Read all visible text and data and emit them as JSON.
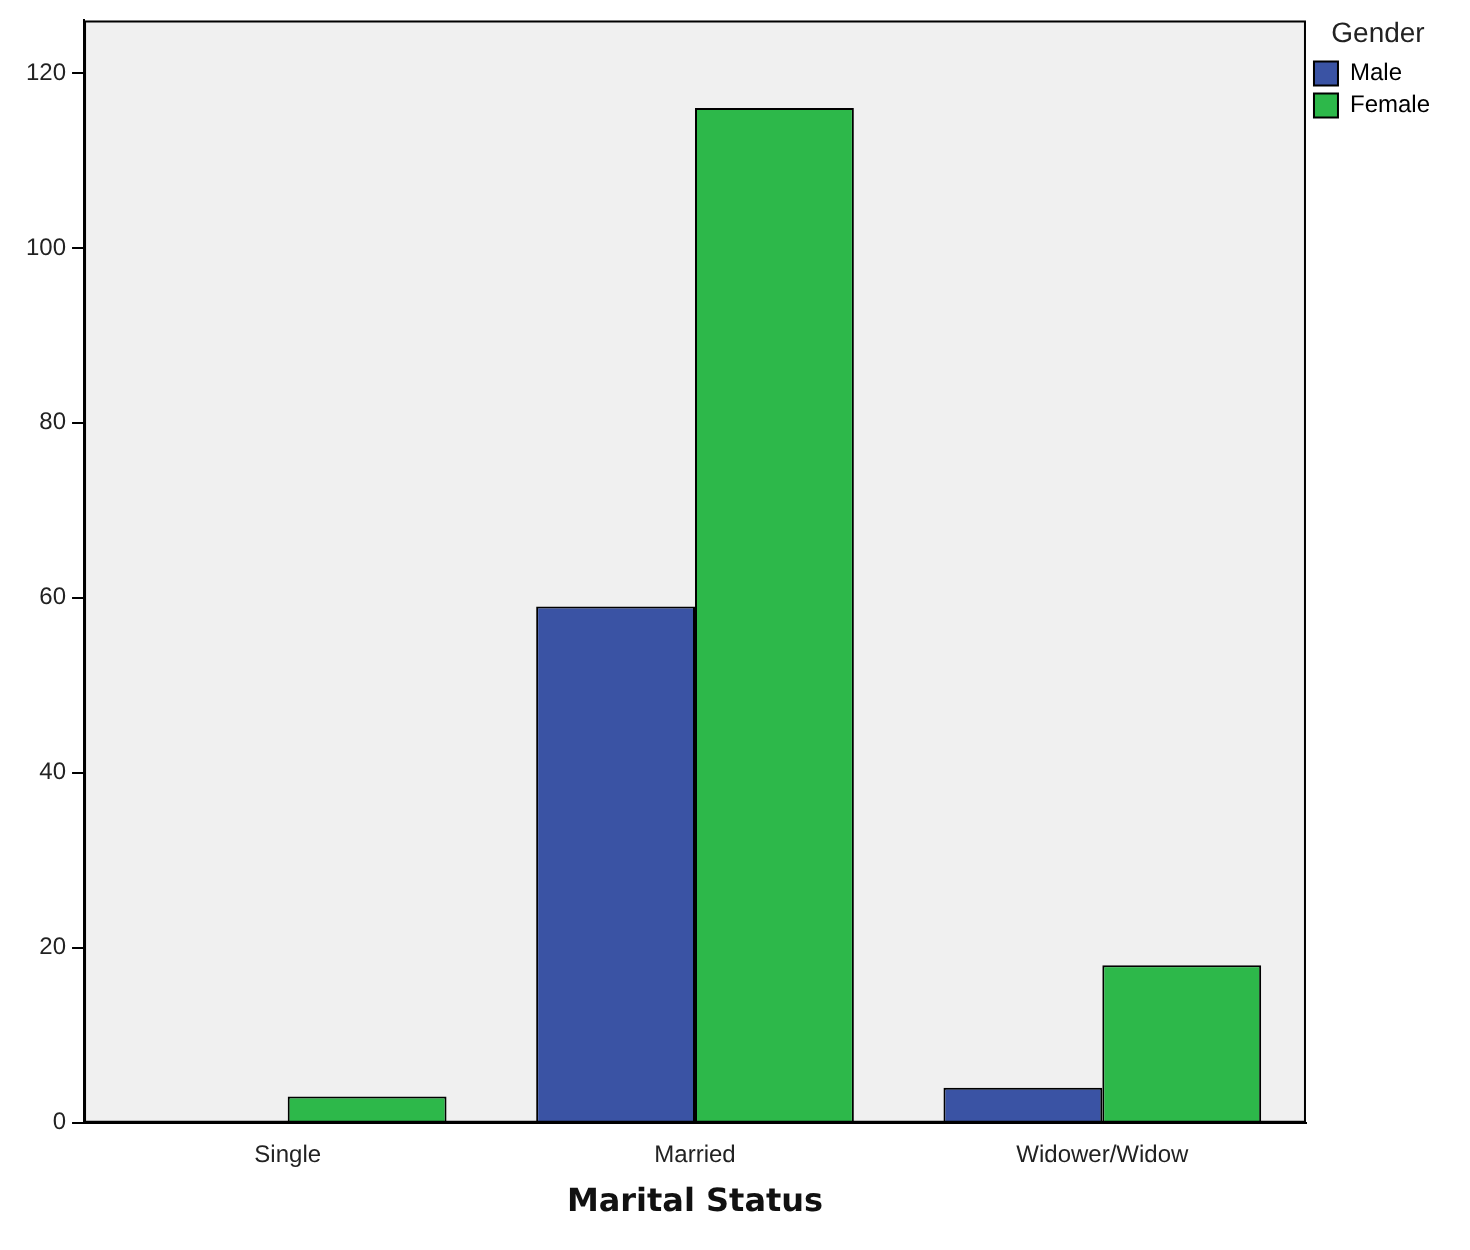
{
  "chart_data": {
    "type": "bar",
    "xlabel": "Marital Status",
    "legend_title": "Gender",
    "categories": [
      "Single",
      "Married",
      "Widower/Widow"
    ],
    "series": [
      {
        "name": "Male",
        "color": "#3a53a4",
        "values": [
          0,
          59,
          4
        ]
      },
      {
        "name": "Female",
        "color": "#2db84a",
        "values": [
          3,
          116,
          18
        ]
      }
    ],
    "ylim": [
      0,
      126
    ],
    "yticks": [
      0,
      20,
      40,
      60,
      80,
      100,
      120
    ],
    "grid": false,
    "legend": "top right"
  }
}
